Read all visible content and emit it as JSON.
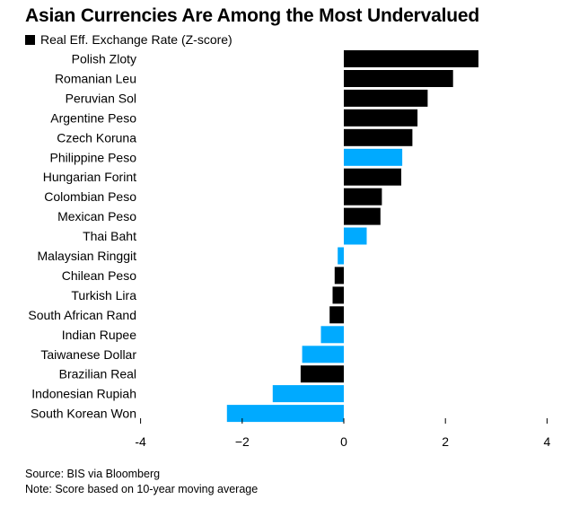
{
  "title": "Asian Currencies Are Among the Most Undervalued",
  "legend": {
    "label": "Real Eff. Exchange Rate (Z-score)"
  },
  "colors": {
    "default": "#000000",
    "highlight": "#00aaff",
    "axis": "#000000"
  },
  "source": "Source: BIS via Bloomberg",
  "note": "Note: Score based on 10-year moving average",
  "chart_data": {
    "type": "bar",
    "orientation": "horizontal",
    "categories": [
      "Polish Zloty",
      "Romanian Leu",
      "Peruvian Sol",
      "Argentine Peso",
      "Czech Koruna",
      "Philippine Peso",
      "Hungarian Forint",
      "Colombian Peso",
      "Mexican Peso",
      "Thai Baht",
      "Malaysian Ringgit",
      "Chilean Peso",
      "Turkish Lira",
      "South African Rand",
      "Indian Rupee",
      "Taiwanese Dollar",
      "Brazilian Real",
      "Indonesian Rupiah",
      "South Korean Won"
    ],
    "values": [
      2.65,
      2.15,
      1.65,
      1.45,
      1.35,
      1.15,
      1.13,
      0.75,
      0.72,
      0.45,
      -0.12,
      -0.18,
      -0.22,
      -0.28,
      -0.45,
      -0.82,
      -0.85,
      -1.4,
      -2.3
    ],
    "highlighted": [
      false,
      false,
      false,
      false,
      false,
      true,
      false,
      false,
      false,
      true,
      true,
      false,
      false,
      false,
      true,
      true,
      false,
      true,
      true
    ],
    "xticks": [
      -4,
      -2,
      0,
      2,
      4
    ],
    "xtick_labels": [
      "-4",
      "−2",
      "0",
      "2",
      "4"
    ],
    "xlim": [
      -4,
      4
    ],
    "xlabel": "",
    "ylabel": "",
    "grid": false,
    "legend_position": "top-left"
  }
}
